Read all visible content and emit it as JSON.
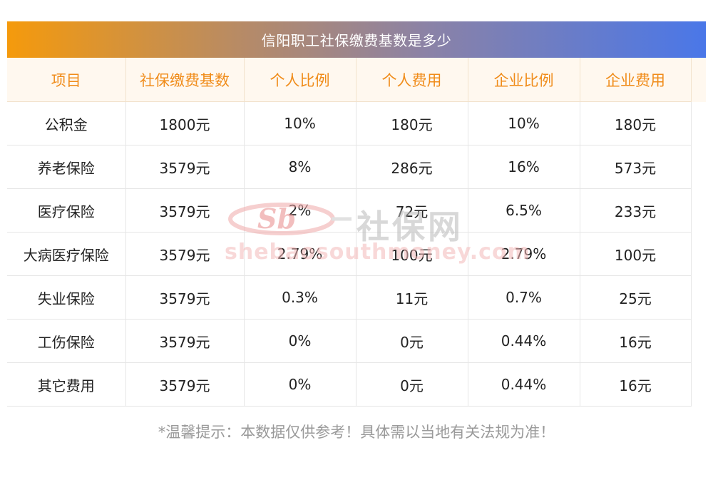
{
  "title": "信阳职工社保缴费基数是多少",
  "table": {
    "headers": [
      "项目",
      "社保缴费基数",
      "个人比例",
      "个人费用",
      "企业比例",
      "企业费用"
    ],
    "rows": [
      [
        "公积金",
        "1800元",
        "10%",
        "180元",
        "10%",
        "180元"
      ],
      [
        "养老保险",
        "3579元",
        "8%",
        "286元",
        "16%",
        "573元"
      ],
      [
        "医疗保险",
        "3579元",
        "2%",
        "72元",
        "6.5%",
        "233元"
      ],
      [
        "大病医疗保险",
        "3579元",
        "2.79%",
        "100元",
        "2.79%",
        "100元"
      ],
      [
        "失业保险",
        "3579元",
        "0.3%",
        "11元",
        "0.7%",
        "25元"
      ],
      [
        "工伤保险",
        "3579元",
        "0%",
        "0元",
        "0.44%",
        "16元"
      ],
      [
        "其它费用",
        "3579元",
        "0%",
        "0元",
        "0.44%",
        "16元"
      ]
    ]
  },
  "watermark": {
    "logo_text": "Sb",
    "brand": "社保网",
    "url": "shebaosouthmoney.com"
  },
  "note": "*温馨提示：本数据仅供参考！具体需以当地有关法规为准！",
  "colors": {
    "title_gradient_start": "#f59a0c",
    "title_gradient_end": "#4a77e8",
    "header_text": "#f08c1a",
    "header_bg": "#fff8ef",
    "note_text": "#9a9a9a"
  }
}
